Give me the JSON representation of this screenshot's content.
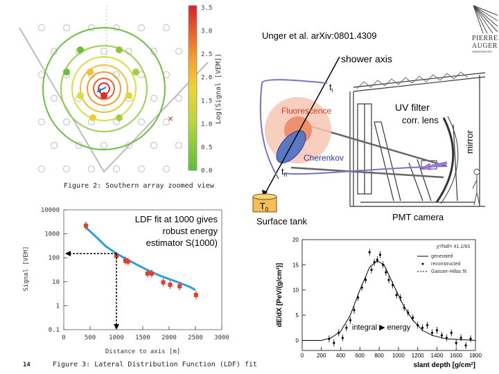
{
  "page_number": "14",
  "logo": {
    "line1": "PIERRE",
    "line2": "AUGER",
    "line3": "OBSERVATORY"
  },
  "figure2": {
    "caption": "Figure 2: Southern array zoomed view",
    "colorbar": {
      "label": "Log(Signal [VEM])",
      "ticks": [
        "3.5",
        "3.0",
        "2.5",
        "2.0",
        "1.5",
        "1.0",
        "0.5",
        "0.0"
      ]
    },
    "core_marker": "×"
  },
  "figure3": {
    "caption": "Figure 3: Lateral Distribution Function (LDF) fit",
    "annotation": [
      "LDF fit at 1000 gives",
      "robust energy",
      "estimator S(1000)"
    ],
    "chart_data": {
      "type": "scatter",
      "xlabel": "Distance to axis [m]",
      "ylabel": "Signal [VEM]",
      "xlim": [
        0,
        3000
      ],
      "ylim": [
        0.1,
        10000
      ],
      "y_scale": "log",
      "x_ticks": [
        "0",
        "500",
        "1000",
        "1500",
        "2000",
        "2500",
        "3000"
      ],
      "y_ticks": [
        "0.1",
        "1",
        "10",
        "100",
        "1000",
        "10000"
      ],
      "points": [
        {
          "x": 420,
          "y": 2200
        },
        {
          "x": 1000,
          "y": 120
        },
        {
          "x": 1170,
          "y": 75
        },
        {
          "x": 1220,
          "y": 70
        },
        {
          "x": 1590,
          "y": 22
        },
        {
          "x": 1670,
          "y": 22
        },
        {
          "x": 1890,
          "y": 9.5
        },
        {
          "x": 2020,
          "y": 7.5
        },
        {
          "x": 2200,
          "y": 6.5
        },
        {
          "x": 2510,
          "y": 2.8
        }
      ],
      "fit": [
        [
          400,
          2000
        ],
        [
          600,
          800
        ],
        [
          800,
          300
        ],
        [
          1000,
          150
        ],
        [
          1200,
          85
        ],
        [
          1400,
          50
        ],
        [
          1600,
          30
        ],
        [
          1800,
          19
        ],
        [
          2000,
          13
        ],
        [
          2200,
          9
        ],
        [
          2400,
          6
        ],
        [
          2500,
          4.5
        ]
      ]
    }
  },
  "fluorescence": {
    "credit": "Unger et al. arXiv:0801.4309",
    "labels": {
      "shower_axis": "shower axis",
      "t_i": "t",
      "t_i_sub": "i",
      "fluorescence": "Fluorescence",
      "cherenkov": "Cherenkov",
      "t_n": "t",
      "t_n_sub": "n",
      "t_0": "T",
      "t_0_sub": "0",
      "surface_tank": "Surface tank",
      "uv_filter": "UV filter",
      "corr_lens": "corr. lens",
      "mirror": "mirror",
      "pmt_camera": "PMT camera"
    }
  },
  "figure4": {
    "note": "χ²/Ndf= 41.1/83",
    "legend": [
      "generated",
      "reconstructed",
      "Gaisser-Hillas fit"
    ],
    "annotation": "integral",
    "annotation_arrow": "▶",
    "annotation2": "energy",
    "chart_data": {
      "type": "scatter",
      "xlabel": "slant depth [g/cm²]",
      "ylabel": "dE/dX [PeV/(g/cm²)]",
      "xlim": [
        0,
        1800
      ],
      "ylim": [
        -2,
        20
      ],
      "x_ticks": [
        "0",
        "200",
        "400",
        "600",
        "800",
        "1000",
        "1200",
        "1400",
        "1600",
        "1800"
      ],
      "y_ticks": [
        "0",
        "5",
        "10",
        "15",
        "20"
      ],
      "curve": [
        [
          0,
          0
        ],
        [
          200,
          0
        ],
        [
          300,
          0.5
        ],
        [
          400,
          1.8
        ],
        [
          500,
          5
        ],
        [
          600,
          10
        ],
        [
          700,
          14.5
        ],
        [
          780,
          15.8
        ],
        [
          850,
          15
        ],
        [
          950,
          11
        ],
        [
          1050,
          7
        ],
        [
          1150,
          4
        ],
        [
          1250,
          2
        ],
        [
          1350,
          1
        ],
        [
          1500,
          0.3
        ],
        [
          1800,
          0
        ]
      ],
      "points": [
        {
          "x": 280,
          "y": 0.3
        },
        {
          "x": 330,
          "y": -0.5
        },
        {
          "x": 380,
          "y": 1.5
        },
        {
          "x": 420,
          "y": 0.5
        },
        {
          "x": 460,
          "y": 2.5
        },
        {
          "x": 500,
          "y": 4
        },
        {
          "x": 540,
          "y": 6
        },
        {
          "x": 580,
          "y": 8.5
        },
        {
          "x": 620,
          "y": 10.5
        },
        {
          "x": 660,
          "y": 12
        },
        {
          "x": 700,
          "y": 17.5
        },
        {
          "x": 720,
          "y": 14
        },
        {
          "x": 750,
          "y": 15.5
        },
        {
          "x": 780,
          "y": 16
        },
        {
          "x": 810,
          "y": 17
        },
        {
          "x": 840,
          "y": 15
        },
        {
          "x": 870,
          "y": 13.5
        },
        {
          "x": 900,
          "y": 12
        },
        {
          "x": 940,
          "y": 11
        },
        {
          "x": 980,
          "y": 9
        },
        {
          "x": 1020,
          "y": 8.5
        },
        {
          "x": 1060,
          "y": 6.5
        },
        {
          "x": 1100,
          "y": 5.5
        },
        {
          "x": 1150,
          "y": 4.5
        },
        {
          "x": 1200,
          "y": 3
        },
        {
          "x": 1250,
          "y": 2.5
        },
        {
          "x": 1300,
          "y": 3
        },
        {
          "x": 1350,
          "y": 1.5
        },
        {
          "x": 1400,
          "y": 2
        },
        {
          "x": 1450,
          "y": 1
        },
        {
          "x": 1500,
          "y": 0.5
        },
        {
          "x": 1550,
          "y": 1.5
        },
        {
          "x": 1600,
          "y": -0.5
        },
        {
          "x": 1650,
          "y": 0.5
        },
        {
          "x": 1700,
          "y": -1
        },
        {
          "x": 1750,
          "y": 0.3
        }
      ]
    }
  }
}
